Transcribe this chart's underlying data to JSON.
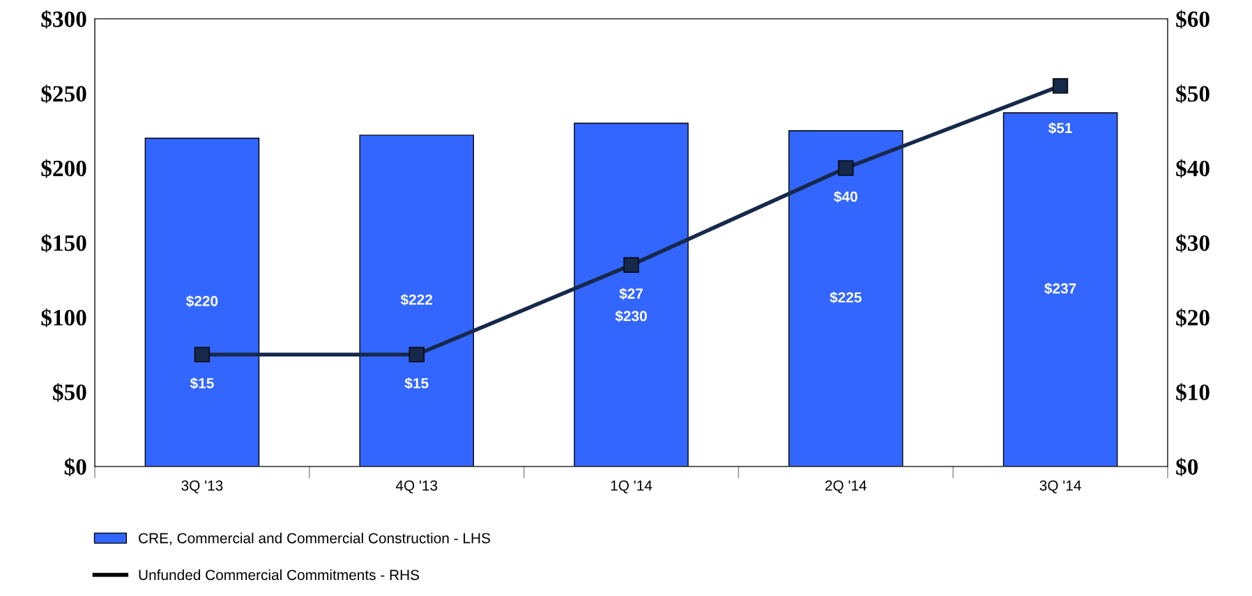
{
  "chart_data": {
    "type": "bar",
    "categories": [
      "3Q '13",
      "4Q '13",
      "1Q '14",
      "2Q '14",
      "3Q '14"
    ],
    "series": [
      {
        "name": "CRE, Commercial and Commercial Construction - LHS",
        "color": "#3366ff",
        "values": [
          220,
          222,
          230,
          225,
          237
        ],
        "value_labels": [
          "$220",
          "$222",
          "$230",
          "$225",
          "$237"
        ]
      },
      {
        "name": "Unfunded Commercial Commitments - RHS",
        "type": "line",
        "axis": "y2",
        "color": "#17294a",
        "values": [
          15,
          15,
          27,
          40,
          51
        ],
        "value_labels": [
          "$15",
          "$15",
          "$27",
          "$40",
          "$51"
        ]
      }
    ],
    "ylim": [
      0,
      300
    ],
    "yticks": [
      {
        "value": 0,
        "label": "$0"
      },
      {
        "value": 50,
        "label": "$50"
      },
      {
        "value": 100,
        "label": "$100"
      },
      {
        "value": 150,
        "label": "$150"
      },
      {
        "value": 200,
        "label": "$200"
      },
      {
        "value": 250,
        "label": "$250"
      },
      {
        "value": 300,
        "label": "$300"
      }
    ],
    "y2lim": [
      0,
      60
    ],
    "y2ticks": [
      {
        "value": 0,
        "label": "$0"
      },
      {
        "value": 10,
        "label": "$10"
      },
      {
        "value": 20,
        "label": "$20"
      },
      {
        "value": 30,
        "label": "$30"
      },
      {
        "value": 40,
        "label": "$40"
      },
      {
        "value": 50,
        "label": "$50"
      },
      {
        "value": 60,
        "label": "$60"
      }
    ],
    "marker": "square",
    "line_style": "solid",
    "grid": false,
    "legend": "bottom left"
  }
}
